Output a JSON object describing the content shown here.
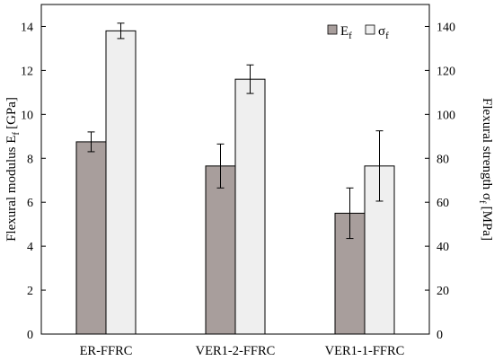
{
  "chart_data": {
    "type": "bar",
    "categories": [
      "ER-FFRC",
      "VER1-2-FFRC",
      "VER1-1-FFRC"
    ],
    "series": [
      {
        "name": "E",
        "name_subscript": "f",
        "axis": "left",
        "color": "#a89e9c",
        "values": [
          8.75,
          7.65,
          5.5
        ],
        "errors": [
          0.45,
          1.0,
          1.15
        ]
      },
      {
        "name": "σ",
        "name_subscript": "f",
        "axis": "right",
        "color": "#efefef",
        "values": [
          138,
          116,
          76.5
        ],
        "errors": [
          3.5,
          6.5,
          16
        ]
      }
    ],
    "ylabel": "Flexural modulus E",
    "ylabel_subscript": "f",
    "ylabel_unit": "[GPa]",
    "ylim": [
      0,
      15
    ],
    "yticks": [
      "0",
      "2",
      "4",
      "6",
      "8",
      "10",
      "12",
      "14"
    ],
    "y2label": "Flexural strength σ",
    "y2label_subscript": "f",
    "y2label_unit": "[MPa]",
    "y2lim": [
      0,
      150
    ],
    "y2ticks": [
      "0",
      "20",
      "40",
      "60",
      "80",
      "100",
      "120",
      "140"
    ],
    "xlabel": "",
    "title": "",
    "legend_position": "top-right",
    "grid": false
  }
}
